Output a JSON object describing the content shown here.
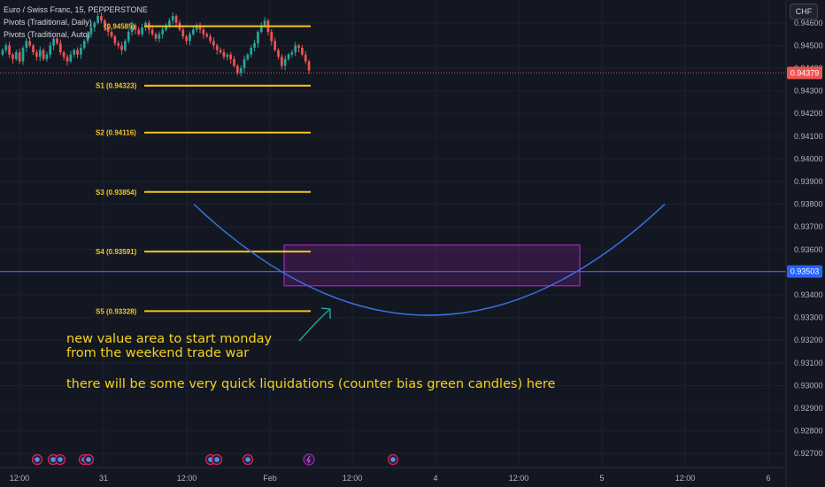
{
  "legend": {
    "symbol": "Euro / Swiss Franc, 15, PEPPERSTONE",
    "indicator1": "Pivots (Traditional, Daily)",
    "indicator2": "Pivots (Traditional, Auto)"
  },
  "currency_badge": "CHF",
  "annotations": {
    "line1": "new value area to start monday",
    "line2": "from the weekend trade war",
    "line3": "there will be some very quick liquidations (counter bias green candles) here"
  },
  "colors": {
    "background": "#131722",
    "pivot": "#f5c51c",
    "horizontal_line": "#2962ff",
    "curve": "#3b6fe0",
    "rectangle": "#9c27b0",
    "arrow": "#26a69a",
    "candle_up": "#26a69a",
    "candle_down": "#ef5350",
    "price_line": "#ef5350",
    "annotation_text": "#f5d31c"
  },
  "chart_data": {
    "type": "candlestick",
    "symbol": "EURCHF",
    "timeframe": "15",
    "ylim": [
      0.9265,
      0.9465
    ],
    "y_ticks": [
      "0.94600",
      "0.94500",
      "0.94400",
      "0.94300",
      "0.94200",
      "0.94100",
      "0.94000",
      "0.93900",
      "0.93800",
      "0.93700",
      "0.93600",
      "0.93500",
      "0.93400",
      "0.93300",
      "0.93200",
      "0.93100",
      "0.93000",
      "0.92900",
      "0.92800",
      "0.92700"
    ],
    "x_ticks": [
      "12:00",
      "31",
      "12:00",
      "Feb",
      "12:00",
      "4",
      "12:00",
      "5",
      "12:00",
      "6"
    ],
    "current_price": 0.94379,
    "current_price_label": "0.94379",
    "horizontal_line": 0.93503,
    "horizontal_line_label": "0.93503",
    "pivots": [
      {
        "name": "P",
        "label": "(0.94585)",
        "value": 0.94585
      },
      {
        "name": "S1",
        "label": "S1 (0.94323)",
        "value": 0.94323
      },
      {
        "name": "S2",
        "label": "S2 (0.94116)",
        "value": 0.94116
      },
      {
        "name": "S3",
        "label": "S3 (0.93854)",
        "value": 0.93854
      },
      {
        "name": "S4",
        "label": "S4 (0.93591)",
        "value": 0.93591
      },
      {
        "name": "S5",
        "label": "S5 (0.93328)",
        "value": 0.93328
      }
    ],
    "value_area": {
      "top": 0.9362,
      "bottom": 0.9344,
      "from": "Feb 2 ~05:00",
      "to": "Feb 4 ~19:00"
    },
    "curve": {
      "start": 0.938,
      "bottom": 0.9331,
      "end": 0.938
    },
    "closes": [
      0.9448,
      0.945,
      0.9446,
      0.9444,
      0.9447,
      0.9443,
      0.9449,
      0.9452,
      0.945,
      0.9447,
      0.9445,
      0.9448,
      0.9444,
      0.9446,
      0.945,
      0.9453,
      0.9451,
      0.9447,
      0.9445,
      0.9443,
      0.9446,
      0.9448,
      0.9446,
      0.9449,
      0.9452,
      0.9455,
      0.9458,
      0.946,
      0.9463,
      0.9461,
      0.9458,
      0.9456,
      0.9454,
      0.9451,
      0.945,
      0.9448,
      0.9452,
      0.9456,
      0.9459,
      0.9457,
      0.9455,
      0.9458,
      0.946,
      0.9457,
      0.9455,
      0.9453,
      0.9455,
      0.9457,
      0.9459,
      0.9461,
      0.9463,
      0.946,
      0.9457,
      0.9454,
      0.9452,
      0.9455,
      0.9457,
      0.9459,
      0.9457,
      0.9455,
      0.9454,
      0.9452,
      0.945,
      0.9448,
      0.9447,
      0.9445,
      0.9446,
      0.9444,
      0.9441,
      0.9438,
      0.944,
      0.9444,
      0.9446,
      0.9449,
      0.9451,
      0.9456,
      0.9459,
      0.9461,
      0.9456,
      0.9452,
      0.9448,
      0.9445,
      0.9441,
      0.9444,
      0.9446,
      0.9447,
      0.945,
      0.9449,
      0.9446,
      0.9443,
      0.9439
    ]
  }
}
